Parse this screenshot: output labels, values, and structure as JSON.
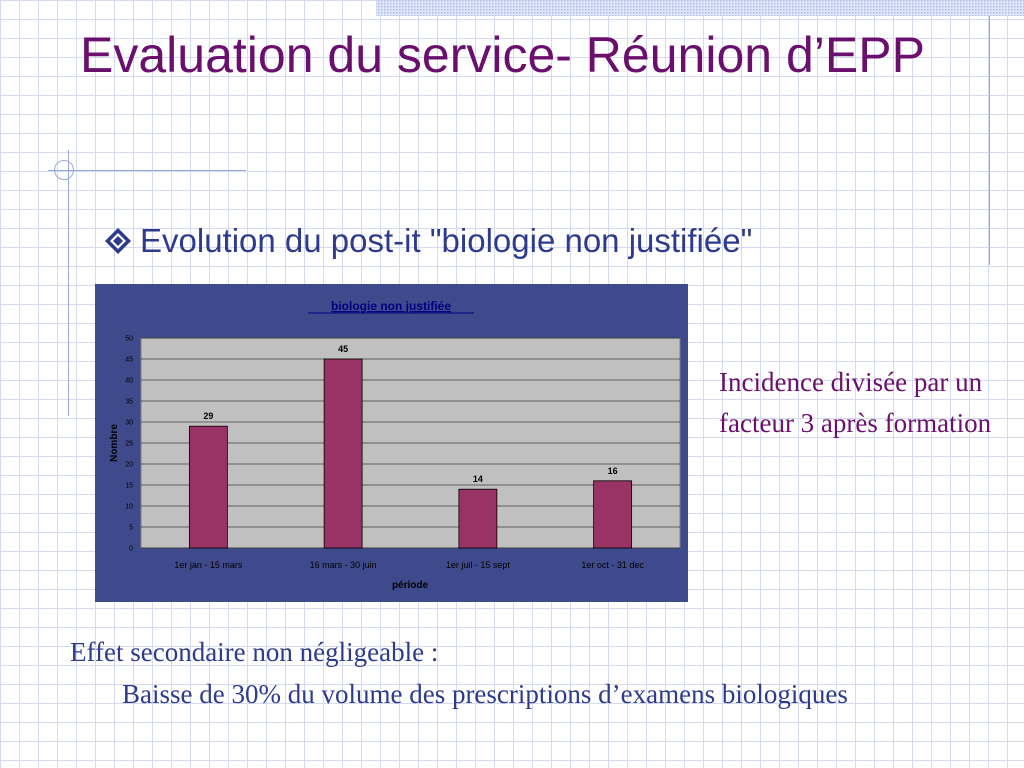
{
  "slide": {
    "title": "Evaluation du service- Réunion d’EPP",
    "bullet": "Evolution du post-it \"biologie non justifiée\"",
    "note": "Incidence divisée par un facteur 3 après formation",
    "footer_line1": "Effet secondaire non négligeable :",
    "footer_line2": "Baisse de 30% du volume des prescriptions d’examens biologiques"
  },
  "colors": {
    "title": "#6a0f6e",
    "text": "#2e3a8c",
    "chart_frame": "#3f4a8c",
    "plot_area": "#c0c0c0",
    "bar": "#993366"
  },
  "chart_data": {
    "type": "bar",
    "title": "biologie non justifiée",
    "xlabel": "période",
    "ylabel": "Nombre",
    "categories": [
      "1er jan - 15 mars",
      "16 mars - 30 juin",
      "1er juil - 15 sept",
      "1er oct - 31 dec"
    ],
    "values": [
      29,
      45,
      14,
      16
    ],
    "ylim": [
      0,
      50
    ],
    "yticks": [
      0,
      5,
      10,
      15,
      20,
      25,
      30,
      35,
      40,
      45,
      50
    ],
    "data_labels": true,
    "grid": true,
    "legend": false
  }
}
